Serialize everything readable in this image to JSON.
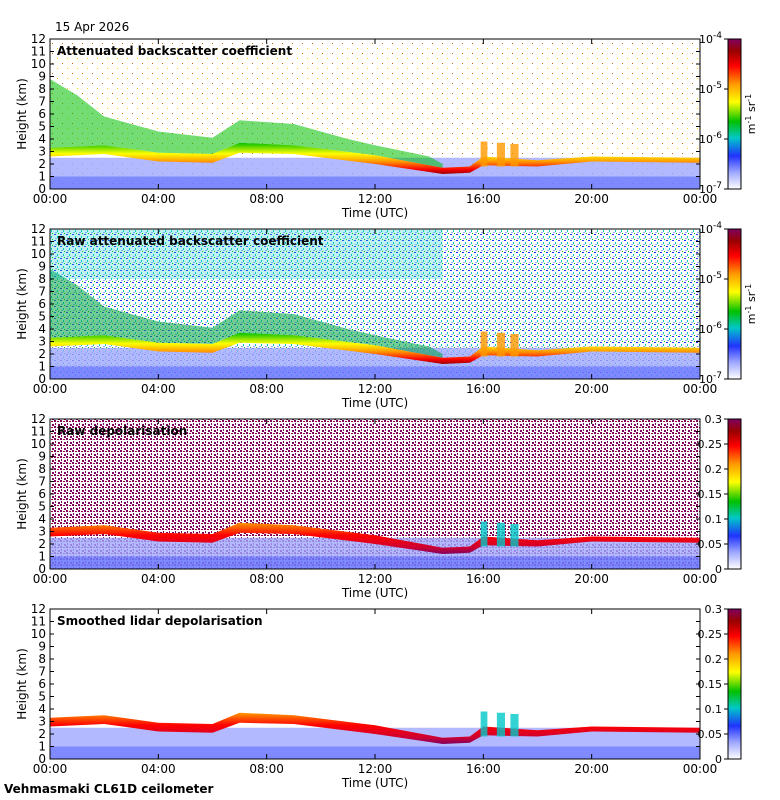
{
  "header": {
    "date": "15 Apr 2026"
  },
  "footer": {
    "site": "Vehmasmaki CL61D ceilometer"
  },
  "colors": {
    "colormap": [
      "#ffffff",
      "#9fa8ff",
      "#2033ff",
      "#00c8c8",
      "#00c000",
      "#ffff00",
      "#ff9900",
      "#ff0000",
      "#990000",
      "#800060"
    ],
    "axis": "#000000"
  },
  "chart_data": [
    {
      "type": "heatmap",
      "title": "Attenuated backscatter coefficient",
      "xlabel": "Time (UTC)",
      "ylabel": "Height (km)",
      "x_ticks": [
        "00:00",
        "04:00",
        "08:00",
        "12:00",
        "16:00",
        "20:00",
        "00:00"
      ],
      "y_ticks": [
        "0",
        "1",
        "2",
        "3",
        "4",
        "5",
        "6",
        "7",
        "8",
        "9",
        "10",
        "11",
        "12"
      ],
      "ylim": [
        0,
        12
      ],
      "colorbar": {
        "scale": "log",
        "ticks": [
          "10-7",
          "10-6",
          "10-5",
          "10-4"
        ],
        "tick_values": [
          1e-07,
          1e-06,
          1e-05,
          0.0001
        ],
        "label": "m-1 sr-1"
      },
      "layer_top_km": [
        {
          "time_h": 0,
          "value": 3.0
        },
        {
          "time_h": 2,
          "value": 3.2
        },
        {
          "time_h": 4,
          "value": 2.6
        },
        {
          "time_h": 6,
          "value": 2.5
        },
        {
          "time_h": 7,
          "value": 3.4
        },
        {
          "time_h": 9,
          "value": 3.2
        },
        {
          "time_h": 12,
          "value": 2.4
        },
        {
          "time_h": 14.5,
          "value": 1.5
        },
        {
          "time_h": 16,
          "value": 2.5
        },
        {
          "time_h": 18,
          "value": 2.2
        },
        {
          "time_h": 20,
          "value": 2.5
        },
        {
          "time_h": 24,
          "value": 2.3
        }
      ]
    },
    {
      "type": "heatmap",
      "title": "Raw attenuated backscatter coefficient",
      "xlabel": "Time (UTC)",
      "ylabel": "Height (km)",
      "x_ticks": [
        "00:00",
        "04:00",
        "08:00",
        "12:00",
        "16:00",
        "20:00",
        "00:00"
      ],
      "y_ticks": [
        "0",
        "1",
        "2",
        "3",
        "4",
        "5",
        "6",
        "7",
        "8",
        "9",
        "10",
        "11",
        "12"
      ],
      "ylim": [
        0,
        12
      ],
      "colorbar": {
        "scale": "log",
        "ticks": [
          "10-7",
          "10-6",
          "10-5",
          "10-4"
        ],
        "tick_values": [
          1e-07,
          1e-06,
          1e-05,
          0.0001
        ],
        "label": "m-1 sr-1"
      }
    },
    {
      "type": "heatmap",
      "title": "Raw depolarisation",
      "xlabel": "Time (UTC)",
      "ylabel": "Height (km)",
      "x_ticks": [
        "00:00",
        "04:00",
        "08:00",
        "12:00",
        "16:00",
        "20:00",
        "00:00"
      ],
      "y_ticks": [
        "0",
        "1",
        "2",
        "3",
        "4",
        "5",
        "6",
        "7",
        "8",
        "9",
        "10",
        "11",
        "12"
      ],
      "ylim": [
        0,
        12
      ],
      "colorbar": {
        "scale": "linear",
        "ticks": [
          "0",
          "0.05",
          "0.1",
          "0.15",
          "0.2",
          "0.25",
          "0.3"
        ],
        "range": [
          0,
          0.3
        ]
      }
    },
    {
      "type": "heatmap",
      "title": "Smoothed lidar depolarisation",
      "xlabel": "Time (UTC)",
      "ylabel": "Height (km)",
      "x_ticks": [
        "00:00",
        "04:00",
        "08:00",
        "12:00",
        "16:00",
        "20:00",
        "00:00"
      ],
      "y_ticks": [
        "0",
        "1",
        "2",
        "3",
        "4",
        "5",
        "6",
        "7",
        "8",
        "9",
        "10",
        "11",
        "12"
      ],
      "ylim": [
        0,
        12
      ],
      "colorbar": {
        "scale": "linear",
        "ticks": [
          "0",
          "0.05",
          "0.1",
          "0.15",
          "0.2",
          "0.25",
          "0.3"
        ],
        "range": [
          0,
          0.3
        ]
      }
    }
  ]
}
